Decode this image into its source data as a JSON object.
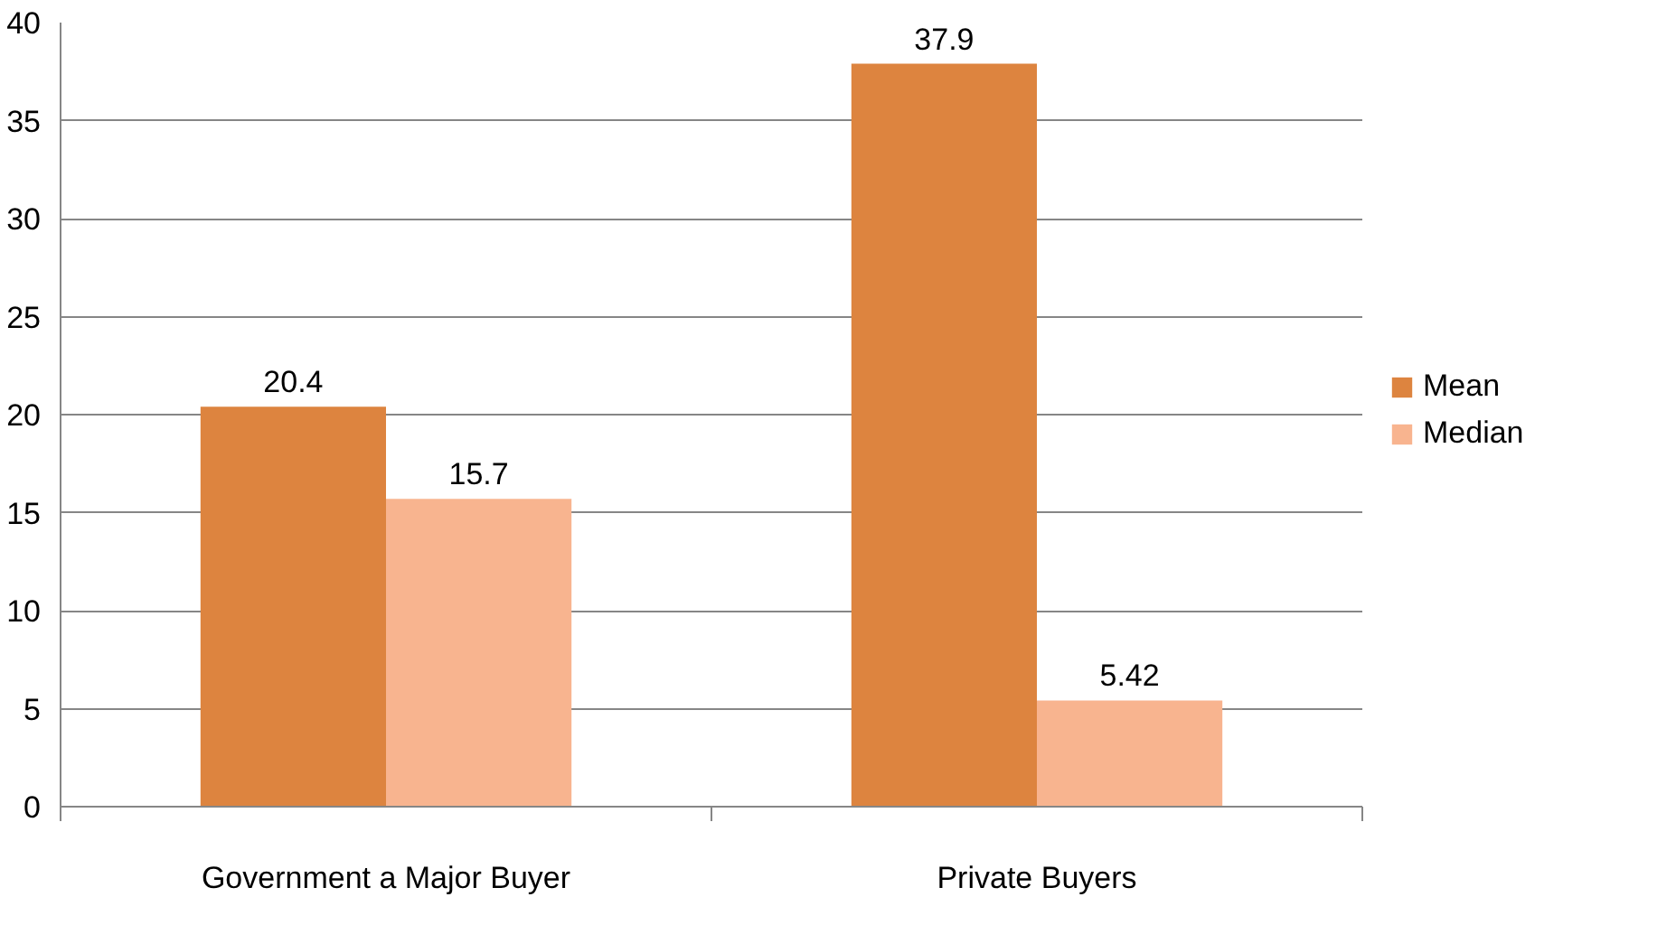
{
  "chart_data": {
    "type": "bar",
    "categories": [
      "Government a Major Buyer",
      "Private Buyers"
    ],
    "series": [
      {
        "name": "Mean",
        "color": "#dd843f",
        "values": [
          20.4,
          37.9
        ]
      },
      {
        "name": "Median",
        "color": "#f8b48f",
        "values": [
          15.7,
          5.42
        ]
      }
    ],
    "ylim": [
      0,
      40
    ],
    "yticks": [
      0,
      5,
      10,
      15,
      20,
      25,
      30,
      35,
      40
    ],
    "grid": "y",
    "legend": "right",
    "data_labels": true
  }
}
